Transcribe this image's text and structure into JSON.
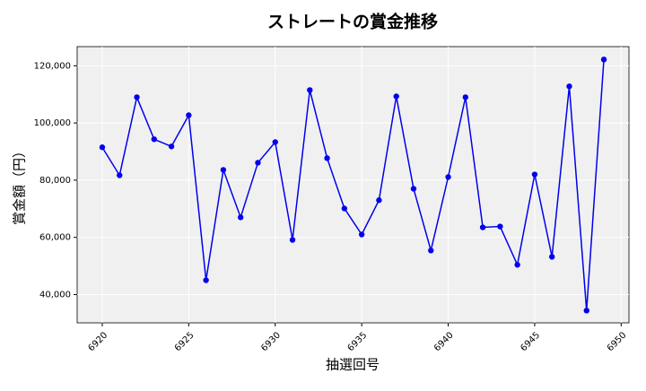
{
  "chart_data": {
    "type": "line",
    "title": "ストレートの賞金推移",
    "x_label": "抽選回号",
    "y_label": "賞金額（円）",
    "x": [
      6920,
      6921,
      6922,
      6923,
      6924,
      6925,
      6926,
      6927,
      6928,
      6929,
      6930,
      6931,
      6932,
      6933,
      6934,
      6935,
      6936,
      6937,
      6938,
      6939,
      6940,
      6941,
      6942,
      6943,
      6944,
      6945,
      6946,
      6947,
      6948,
      6949
    ],
    "series": [
      {
        "color": "#0000ee",
        "values": [
          91500,
          81700,
          109000,
          94300,
          91800,
          102700,
          45000,
          83600,
          67000,
          86100,
          93300,
          59100,
          111500,
          87700,
          70100,
          61000,
          73000,
          109300,
          77000,
          55400,
          81100,
          109000,
          63500,
          63800,
          50400,
          82000,
          53200,
          112800,
          34400,
          122200
        ]
      }
    ],
    "xlim": [
      6918.55,
      6950.45
    ],
    "xticks": [
      6920,
      6925,
      6930,
      6935,
      6940,
      6945,
      6950
    ],
    "ylim": [
      30110,
      126690
    ],
    "yticks": [
      {
        "value": 40000,
        "label": "40,000"
      },
      {
        "value": 60000,
        "label": "60,000"
      },
      {
        "value": 80000,
        "label": "80,000"
      },
      {
        "value": 100000,
        "label": "100,000"
      },
      {
        "value": 120000,
        "label": "120,000"
      }
    ],
    "grid": true
  }
}
